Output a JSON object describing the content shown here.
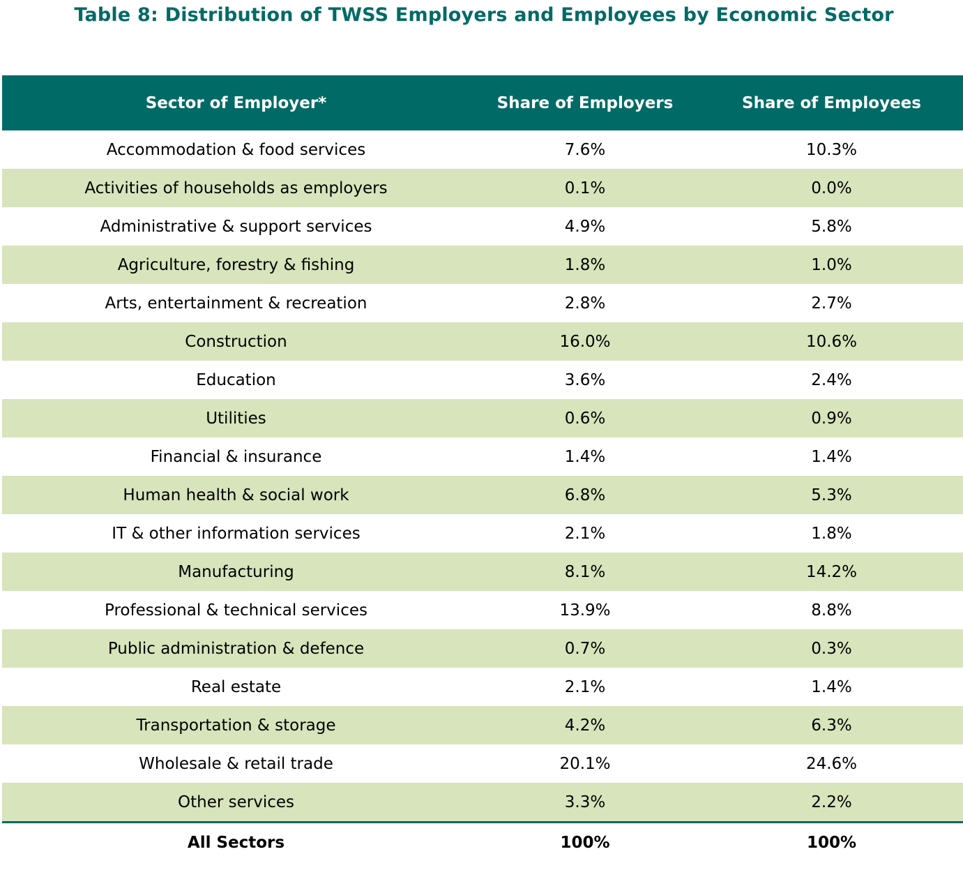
{
  "title": "Table 8: Distribution of TWSS Employers and Employees by Economic Sector",
  "table": {
    "headers": [
      "Sector of Employer*",
      "Share of Employers",
      "Share of Employees"
    ],
    "rows": [
      [
        "Accommodation & food services",
        "7.6%",
        "10.3%"
      ],
      [
        "Activities of households as employers",
        "0.1%",
        "0.0%"
      ],
      [
        "Administrative & support services",
        "4.9%",
        "5.8%"
      ],
      [
        "Agriculture, forestry & fishing",
        "1.8%",
        "1.0%"
      ],
      [
        "Arts, entertainment & recreation",
        "2.8%",
        "2.7%"
      ],
      [
        "Construction",
        "16.0%",
        "10.6%"
      ],
      [
        "Education",
        "3.6%",
        "2.4%"
      ],
      [
        "Utilities",
        "0.6%",
        "0.9%"
      ],
      [
        "Financial & insurance",
        "1.4%",
        "1.4%"
      ],
      [
        "Human health & social work",
        "6.8%",
        "5.3%"
      ],
      [
        "IT & other information services",
        "2.1%",
        "1.8%"
      ],
      [
        "Manufacturing",
        "8.1%",
        "14.2%"
      ],
      [
        "Professional & technical services",
        "13.9%",
        "8.8%"
      ],
      [
        "Public administration & defence",
        "0.7%",
        "0.3%"
      ],
      [
        "Real estate",
        "2.1%",
        "1.4%"
      ],
      [
        "Transportation & storage",
        "4.2%",
        "6.3%"
      ],
      [
        "Wholesale & retail trade",
        "20.1%",
        "24.6%"
      ],
      [
        "Other services",
        "3.3%",
        "2.2%"
      ]
    ],
    "total": [
      "All Sectors",
      "100%",
      "100%"
    ]
  },
  "colors": {
    "header_bg": "#006a66",
    "title_text": "#006a66",
    "band_bg": "#d7e4bc"
  }
}
